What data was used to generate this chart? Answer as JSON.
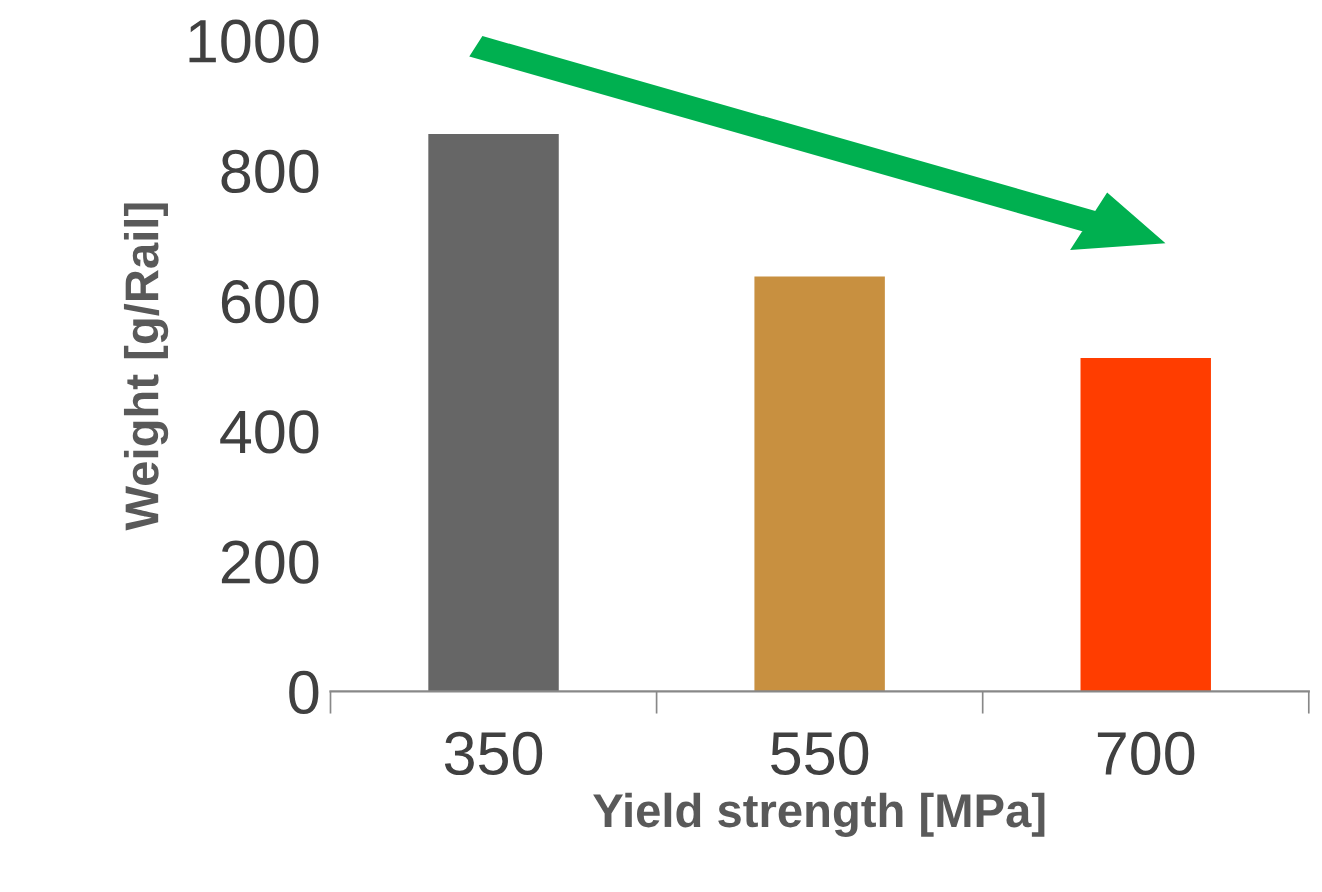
{
  "chart_data": {
    "type": "bar",
    "xlabel": "Yield strength [MPa]",
    "ylabel": "Weight [g/Rail]",
    "categories": [
      "350",
      "550",
      "700"
    ],
    "values": [
      856,
      637,
      512
    ],
    "colors": [
      "#666666",
      "#c89040",
      "#ff3d00"
    ],
    "ylim": [
      0,
      1000
    ],
    "yticks": [
      0,
      200,
      400,
      600,
      800,
      1000
    ],
    "grid": false
  }
}
